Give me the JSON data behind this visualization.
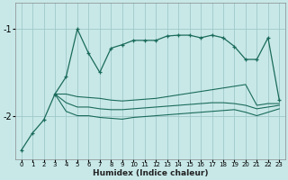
{
  "title": "",
  "xlabel": "Humidex (Indice chaleur)",
  "bg_color": "#c8e8e8",
  "plot_bg_color": "#c8e8e8",
  "grid_color": "#a0c8c8",
  "line_color": "#1a6b5a",
  "xlim": [
    -0.5,
    23.5
  ],
  "ylim": [
    -2.5,
    -0.7
  ],
  "yticks": [
    -2,
    -1
  ],
  "xticks": [
    0,
    1,
    2,
    3,
    4,
    5,
    6,
    7,
    8,
    9,
    10,
    11,
    12,
    13,
    14,
    15,
    16,
    17,
    18,
    19,
    20,
    21,
    22,
    23
  ],
  "main_x": [
    0,
    1,
    2,
    3,
    4,
    5,
    6,
    7,
    8,
    9,
    10,
    11,
    12,
    13,
    14,
    15,
    16,
    17,
    18,
    19,
    20,
    21,
    22,
    23
  ],
  "main_y": [
    -2.4,
    -2.2,
    -2.05,
    -1.75,
    -1.55,
    -1.0,
    -1.28,
    -1.5,
    -1.22,
    -1.18,
    -1.13,
    -1.13,
    -1.13,
    -1.08,
    -1.07,
    -1.07,
    -1.1,
    -1.07,
    -1.1,
    -1.2,
    -1.35,
    -1.35,
    -1.1,
    -1.82
  ],
  "line2_x": [
    3,
    4,
    5,
    6,
    7,
    8,
    9,
    10,
    11,
    12,
    13,
    14,
    15,
    16,
    17,
    18,
    19,
    20,
    21,
    22,
    23
  ],
  "line2_y": [
    -1.75,
    -1.75,
    -1.78,
    -1.79,
    -1.8,
    -1.82,
    -1.83,
    -1.82,
    -1.81,
    -1.8,
    -1.78,
    -1.76,
    -1.74,
    -1.72,
    -1.7,
    -1.68,
    -1.66,
    -1.64,
    -1.88,
    -1.86,
    -1.86
  ],
  "line3_x": [
    3,
    4,
    5,
    6,
    7,
    8,
    9,
    10,
    11,
    12,
    13,
    14,
    15,
    16,
    17,
    18,
    19,
    20,
    21,
    22,
    23
  ],
  "line3_y": [
    -1.75,
    -1.85,
    -1.9,
    -1.9,
    -1.92,
    -1.93,
    -1.93,
    -1.92,
    -1.91,
    -1.9,
    -1.89,
    -1.88,
    -1.87,
    -1.86,
    -1.85,
    -1.85,
    -1.86,
    -1.88,
    -1.92,
    -1.9,
    -1.88
  ],
  "line4_x": [
    3,
    4,
    5,
    6,
    7,
    8,
    9,
    10,
    11,
    12,
    13,
    14,
    15,
    16,
    17,
    18,
    19,
    20,
    21,
    22,
    23
  ],
  "line4_y": [
    -1.75,
    -1.95,
    -2.0,
    -2.0,
    -2.02,
    -2.03,
    -2.04,
    -2.02,
    -2.01,
    -2.0,
    -1.99,
    -1.98,
    -1.97,
    -1.96,
    -1.95,
    -1.94,
    -1.93,
    -1.96,
    -2.0,
    -1.96,
    -1.92
  ]
}
